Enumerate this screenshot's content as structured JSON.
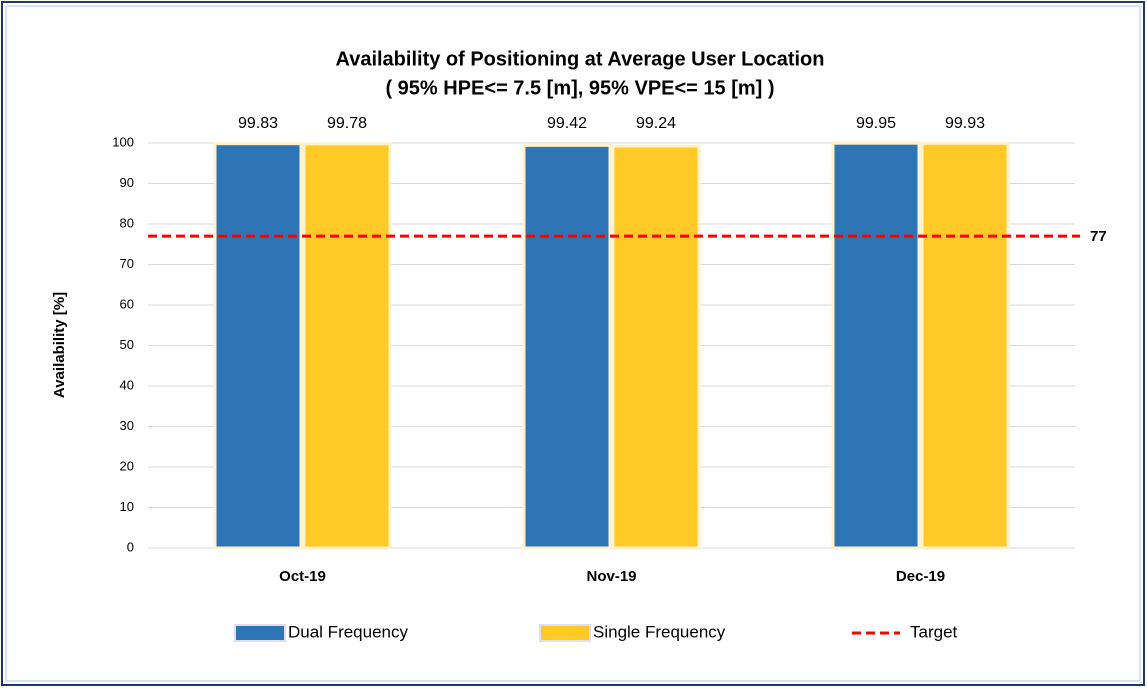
{
  "chart_data": {
    "type": "bar",
    "title": "Availability of Positioning at Average User Location",
    "subtitle": "( 95% HPE<= 7.5 [m], 95% VPE<= 15 [m] )",
    "y_label": "Availability [%]",
    "categories": [
      "Oct-19",
      "Nov-19",
      "Dec-19"
    ],
    "series": [
      {
        "name": "Dual Frequency",
        "color": "#2e75b6",
        "values": [
          99.83,
          99.42,
          99.95
        ]
      },
      {
        "name": "Single Frequency",
        "color": "#ffca28",
        "values": [
          99.78,
          99.24,
          99.93
        ]
      }
    ],
    "target": {
      "name": "Target",
      "value": 77,
      "color": "#ff0000"
    },
    "ylim": [
      0,
      100
    ],
    "yticks": [
      0,
      10,
      20,
      30,
      40,
      50,
      60,
      70,
      80,
      90,
      100
    ],
    "grid": true,
    "legend": "bottom"
  }
}
